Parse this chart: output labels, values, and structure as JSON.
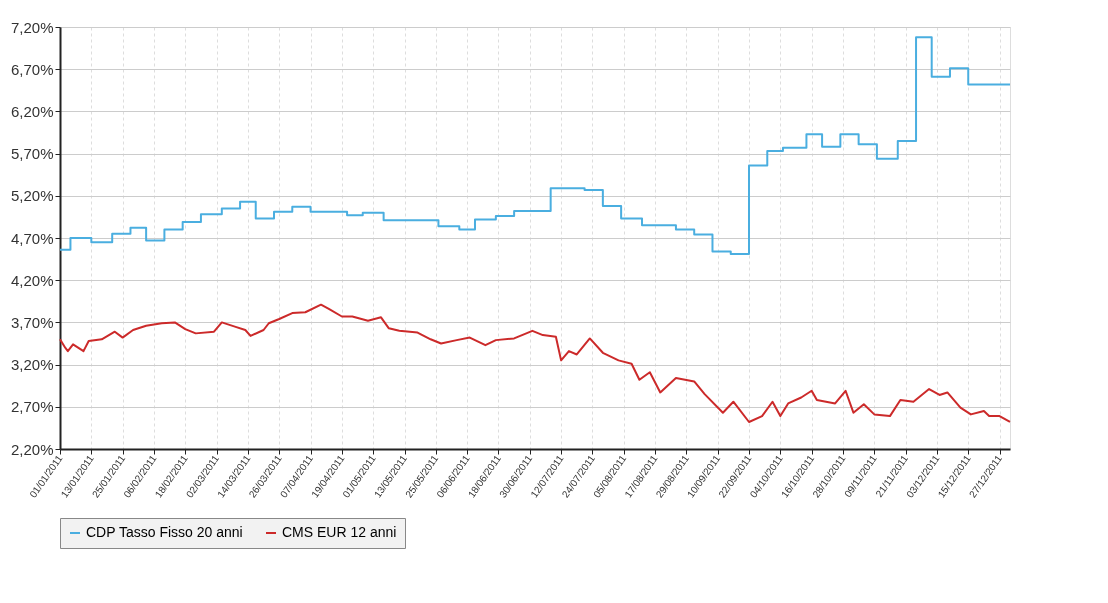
{
  "chart_data": {
    "type": "line",
    "xlim": [
      "2011-01-01",
      "2011-12-31"
    ],
    "xticks": [
      {
        "value": "2011-01-01",
        "label": "01/01/2011"
      },
      {
        "value": "2011-01-13",
        "label": "13/01/2011"
      },
      {
        "value": "2011-01-25",
        "label": "25/01/2011"
      },
      {
        "value": "2011-02-06",
        "label": "06/02/2011"
      },
      {
        "value": "2011-02-18",
        "label": "18/02/2011"
      },
      {
        "value": "2011-03-02",
        "label": "02/03/2011"
      },
      {
        "value": "2011-03-14",
        "label": "14/03/2011"
      },
      {
        "value": "2011-03-26",
        "label": "26/03/2011"
      },
      {
        "value": "2011-04-07",
        "label": "07/04/2011"
      },
      {
        "value": "2011-04-19",
        "label": "19/04/2011"
      },
      {
        "value": "2011-05-01",
        "label": "01/05/2011"
      },
      {
        "value": "2011-05-13",
        "label": "13/05/2011"
      },
      {
        "value": "2011-05-25",
        "label": "25/05/2011"
      },
      {
        "value": "2011-06-06",
        "label": "06/06/2011"
      },
      {
        "value": "2011-06-18",
        "label": "18/06/2011"
      },
      {
        "value": "2011-06-30",
        "label": "30/06/2011"
      },
      {
        "value": "2011-07-12",
        "label": "12/07/2011"
      },
      {
        "value": "2011-07-24",
        "label": "24/07/2011"
      },
      {
        "value": "2011-08-05",
        "label": "05/08/2011"
      },
      {
        "value": "2011-08-17",
        "label": "17/08/2011"
      },
      {
        "value": "2011-08-29",
        "label": "29/08/2011"
      },
      {
        "value": "2011-09-10",
        "label": "10/09/2011"
      },
      {
        "value": "2011-09-22",
        "label": "22/09/2011"
      },
      {
        "value": "2011-10-04",
        "label": "04/10/2011"
      },
      {
        "value": "2011-10-16",
        "label": "16/10/2011"
      },
      {
        "value": "2011-10-28",
        "label": "28/10/2011"
      },
      {
        "value": "2011-11-09",
        "label": "09/11/2011"
      },
      {
        "value": "2011-11-21",
        "label": "21/11/2011"
      },
      {
        "value": "2011-12-03",
        "label": "03/12/2011"
      },
      {
        "value": "2011-12-15",
        "label": "15/12/2011"
      },
      {
        "value": "2011-12-27",
        "label": "27/12/2011"
      }
    ],
    "ylim": [
      2.2,
      7.2
    ],
    "yticks": [
      {
        "value": 2.2,
        "label": "2,20%"
      },
      {
        "value": 2.7,
        "label": "2,70%"
      },
      {
        "value": 3.2,
        "label": "3,20%"
      },
      {
        "value": 3.7,
        "label": "3,70%"
      },
      {
        "value": 4.2,
        "label": "4,20%"
      },
      {
        "value": 4.7,
        "label": "4,70%"
      },
      {
        "value": 5.2,
        "label": "5,20%"
      },
      {
        "value": 5.7,
        "label": "5,70%"
      },
      {
        "value": 6.2,
        "label": "6,20%"
      },
      {
        "value": 6.7,
        "label": "6,70%"
      },
      {
        "value": 7.2,
        "label": "7,20%"
      }
    ],
    "grid": true,
    "legend": "bottom",
    "marker": "none",
    "series": [
      {
        "name": "CDP Tasso Fisso 20 anni",
        "type": "step",
        "color": "#4aaee0",
        "x": [
          "2011-01-01",
          "2011-01-05",
          "2011-01-13",
          "2011-01-21",
          "2011-01-28",
          "2011-02-03",
          "2011-02-10",
          "2011-02-17",
          "2011-02-24",
          "2011-03-04",
          "2011-03-11",
          "2011-03-17",
          "2011-03-24",
          "2011-03-31",
          "2011-04-07",
          "2011-04-21",
          "2011-04-27",
          "2011-05-05",
          "2011-05-26",
          "2011-06-03",
          "2011-06-09",
          "2011-06-17",
          "2011-06-24",
          "2011-07-08",
          "2011-07-21",
          "2011-07-28",
          "2011-08-04",
          "2011-08-12",
          "2011-08-25",
          "2011-09-01",
          "2011-09-08",
          "2011-09-15",
          "2011-09-22",
          "2011-09-29",
          "2011-10-05",
          "2011-10-14",
          "2011-10-20",
          "2011-10-27",
          "2011-11-03",
          "2011-11-10",
          "2011-11-18",
          "2011-11-25",
          "2011-12-01",
          "2011-12-08",
          "2011-12-15",
          "2011-12-31"
        ],
        "values": [
          4.56,
          4.7,
          4.65,
          4.75,
          4.82,
          4.67,
          4.8,
          4.89,
          4.98,
          5.05,
          5.13,
          4.93,
          5.01,
          5.07,
          5.01,
          4.97,
          5.0,
          4.91,
          4.84,
          4.8,
          4.92,
          4.96,
          5.02,
          5.29,
          5.27,
          5.08,
          4.93,
          4.85,
          4.8,
          4.74,
          4.54,
          4.51,
          5.56,
          5.73,
          5.77,
          5.93,
          5.78,
          5.93,
          5.81,
          5.64,
          5.85,
          7.08,
          6.61,
          6.71,
          6.52,
          6.52
        ]
      },
      {
        "name": "CMS EUR 12 anni",
        "type": "line",
        "color": "#cc2a2a",
        "x": [
          "2011-01-01",
          "2011-01-03",
          "2011-01-04",
          "2011-01-06",
          "2011-01-10",
          "2011-01-12",
          "2011-01-17",
          "2011-01-22",
          "2011-01-25",
          "2011-01-29",
          "2011-02-03",
          "2011-02-09",
          "2011-02-14",
          "2011-02-18",
          "2011-02-22",
          "2011-03-01",
          "2011-03-04",
          "2011-03-09",
          "2011-03-13",
          "2011-03-15",
          "2011-03-20",
          "2011-03-22",
          "2011-03-26",
          "2011-03-31",
          "2011-04-05",
          "2011-04-11",
          "2011-04-14",
          "2011-04-19",
          "2011-04-23",
          "2011-04-29",
          "2011-05-04",
          "2011-05-07",
          "2011-05-11",
          "2011-05-18",
          "2011-05-23",
          "2011-05-27",
          "2011-06-02",
          "2011-06-07",
          "2011-06-13",
          "2011-06-17",
          "2011-06-24",
          "2011-07-01",
          "2011-07-05",
          "2011-07-10",
          "2011-07-12",
          "2011-07-15",
          "2011-07-18",
          "2011-07-23",
          "2011-07-28",
          "2011-08-03",
          "2011-08-08",
          "2011-08-11",
          "2011-08-15",
          "2011-08-19",
          "2011-08-25",
          "2011-09-01",
          "2011-09-05",
          "2011-09-12",
          "2011-09-16",
          "2011-09-22",
          "2011-09-27",
          "2011-10-01",
          "2011-10-04",
          "2011-10-07",
          "2011-10-12",
          "2011-10-16",
          "2011-10-18",
          "2011-10-25",
          "2011-10-29",
          "2011-11-01",
          "2011-11-05",
          "2011-11-09",
          "2011-11-15",
          "2011-11-19",
          "2011-11-24",
          "2011-11-30",
          "2011-12-04",
          "2011-12-07",
          "2011-12-12",
          "2011-12-16",
          "2011-12-21",
          "2011-12-23",
          "2011-12-27",
          "2011-12-31"
        ],
        "values": [
          3.5,
          3.4,
          3.36,
          3.44,
          3.36,
          3.48,
          3.5,
          3.59,
          3.52,
          3.61,
          3.66,
          3.69,
          3.7,
          3.62,
          3.57,
          3.59,
          3.7,
          3.65,
          3.61,
          3.54,
          3.61,
          3.69,
          3.74,
          3.81,
          3.82,
          3.91,
          3.86,
          3.77,
          3.77,
          3.72,
          3.76,
          3.63,
          3.6,
          3.58,
          3.5,
          3.45,
          3.49,
          3.52,
          3.43,
          3.49,
          3.51,
          3.6,
          3.55,
          3.53,
          3.25,
          3.36,
          3.32,
          3.51,
          3.34,
          3.25,
          3.21,
          3.02,
          3.11,
          2.87,
          3.04,
          3.0,
          2.85,
          2.63,
          2.76,
          2.52,
          2.59,
          2.76,
          2.59,
          2.74,
          2.81,
          2.89,
          2.78,
          2.74,
          2.89,
          2.63,
          2.73,
          2.61,
          2.59,
          2.78,
          2.76,
          2.91,
          2.84,
          2.87,
          2.69,
          2.61,
          2.65,
          2.59,
          2.59,
          2.52
        ]
      }
    ]
  }
}
